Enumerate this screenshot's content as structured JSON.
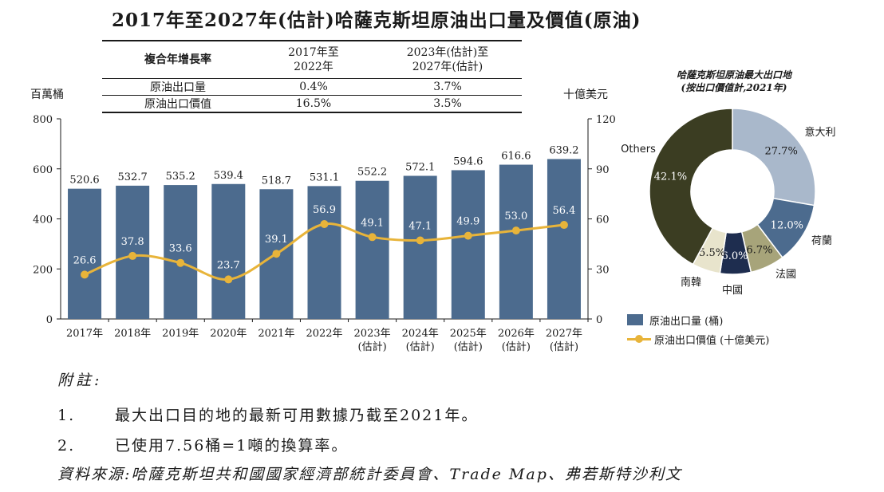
{
  "title": "2017年至2027年(估計)哈薩克斯坦原油出口量及價值(原油)",
  "cagr_table": {
    "header_label": "複合年增長率",
    "col1_header": "2017年至\n2022年",
    "col2_header": "2023年(估計)至\n2027年(估計)",
    "rows": [
      {
        "label": "原油出口量",
        "v1": "0.4%",
        "v2": "3.7%"
      },
      {
        "label": "原油出口價值",
        "v1": "16.5%",
        "v2": "3.5%"
      }
    ]
  },
  "units": {
    "left": "百萬桶",
    "right": "十億美元"
  },
  "legend": {
    "bar": "原油出口量 (桶)",
    "line": "原油出口價值 (十億美元)"
  },
  "donut_title": "哈薩克斯坦原油最大出口地\n(按出口價值計,2021年)",
  "colors": {
    "bar": "#4c6b8e",
    "line": "#e8b43a"
  },
  "chart_data": [
    {
      "type": "bar",
      "title": "原油出口量及價值",
      "categories": [
        "2017年",
        "2018年",
        "2019年",
        "2020年",
        "2021年",
        "2022年",
        "2023年\n(估計)",
        "2024年\n(估計)",
        "2025年\n(估計)",
        "2026年\n(估計)",
        "2027年\n(估計)"
      ],
      "left_axis": {
        "label": "百萬桶",
        "ylim": [
          0,
          800
        ],
        "ticks": [
          "0",
          "200",
          "400",
          "600",
          "800"
        ]
      },
      "right_axis": {
        "label": "十億美元",
        "ylim": [
          0,
          120
        ],
        "ticks": [
          "0",
          "30",
          "60",
          "90",
          "120"
        ]
      },
      "series": [
        {
          "name": "原油出口量 (桶)",
          "type": "bar",
          "axis": "left",
          "values": [
            520.6,
            532.7,
            535.2,
            539.4,
            518.7,
            531.1,
            552.2,
            572.1,
            594.6,
            616.6,
            639.2
          ],
          "labels": [
            "520.6",
            "532.7",
            "535.2",
            "539.4",
            "518.7",
            "531.1",
            "552.2",
            "572.1",
            "594.6",
            "616.6",
            "639.2"
          ]
        },
        {
          "name": "原油出口價值 (十億美元)",
          "type": "line",
          "axis": "right",
          "values": [
            26.6,
            37.8,
            33.6,
            23.7,
            39.1,
            56.9,
            49.1,
            47.1,
            49.9,
            53.0,
            56.4
          ],
          "labels": [
            "26.6",
            "37.8",
            "33.6",
            "23.7",
            "39.1",
            "56.9",
            "49.1",
            "47.1",
            "49.9",
            "53.0",
            "56.4"
          ]
        }
      ]
    },
    {
      "type": "pie",
      "title": "哈薩克斯坦原油最大出口地 (按出口價值計,2021年)",
      "slices": [
        {
          "name": "意大利",
          "value": 27.7,
          "label": "27.7%",
          "color": "#a9b8cb"
        },
        {
          "name": "荷蘭",
          "value": 12.0,
          "label": "12.0%",
          "color": "#4c6b8e"
        },
        {
          "name": "法國",
          "value": 6.7,
          "label": "6.7%",
          "color": "#a7a47a"
        },
        {
          "name": "中國",
          "value": 6.0,
          "label": "6.0%",
          "color": "#1e2d4f"
        },
        {
          "name": "南韓",
          "value": 5.5,
          "label": "5.5%",
          "color": "#e8e4cc"
        },
        {
          "name": "Others",
          "value": 42.1,
          "label": "42.1%",
          "color": "#3b3d22"
        }
      ]
    }
  ],
  "notes": {
    "heading": "附註:",
    "items": [
      {
        "num": "1.",
        "text": "最大出口目的地的最新可用數據乃截至2021年。"
      },
      {
        "num": "2.",
        "text": "已使用7.56桶=1噸的換算率。"
      }
    ],
    "source": "資料來源:哈薩克斯坦共和國國家經濟部統計委員會、Trade Map、弗若斯特沙利文"
  }
}
